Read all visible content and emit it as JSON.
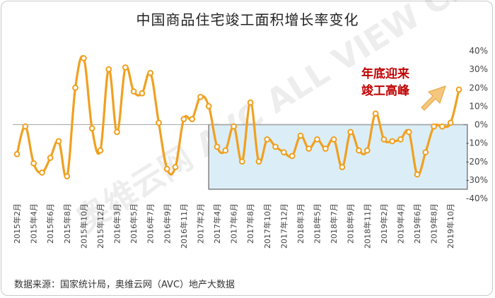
{
  "chart_data": {
    "type": "line",
    "title": "中国商品住宅竣工面积增长率变化",
    "source": "数据来源：国家统计局，奥维云网（AVC）地产大数据",
    "watermark": "奥维云网 AVC  ALL VIEW CLOUD",
    "annotation": {
      "line1": "年底迎来",
      "line2": "竣工高峰",
      "color": "#c00000",
      "arrow_color": "#f5c77e"
    },
    "y_axis": {
      "min": -40,
      "max": 40,
      "step": 10,
      "position": "right",
      "unit": "%"
    },
    "yticks": [
      "-40%",
      "-30%",
      "-20%",
      "-10%",
      "0%",
      "10%",
      "20%",
      "30%",
      "40%"
    ],
    "xticks": [
      "2015年2月",
      "2015年4月",
      "2015年6月",
      "2015年8月",
      "2015年10月",
      "2015年12月",
      "2016年3月",
      "2016年5月",
      "2016年7月",
      "2016年9月",
      "2016年11月",
      "2017年2月",
      "2017年4月",
      "2017年6月",
      "2017年8月",
      "2017年10月",
      "2017年12月",
      "2018年3月",
      "2018年5月",
      "2018年7月",
      "2018年9月",
      "2018年11月",
      "2019年2月",
      "2019年4月",
      "2019年6月",
      "2019年8月",
      "2019年10月"
    ],
    "series": [
      {
        "color": "#f0a020",
        "values": [
          -16,
          -1,
          -21,
          -26,
          -18,
          -9,
          -28,
          20,
          36,
          -2,
          -14,
          30,
          -4,
          31,
          18,
          17,
          28,
          1,
          -24,
          -23,
          3,
          3,
          15,
          10,
          -12,
          -14,
          -1,
          -20,
          12,
          -20,
          -8,
          -12,
          -15,
          -17,
          -6,
          -13,
          -8,
          -13,
          -8,
          -23,
          -4,
          -14,
          -14,
          6,
          -8,
          -9,
          -8,
          -4,
          -27,
          -15,
          -1,
          -1,
          1,
          19
        ]
      }
    ],
    "highlight_box": {
      "from_index": 23,
      "to_index": 54,
      "y_top": 0,
      "y_bottom": -35,
      "fill": "#dbeef8",
      "stroke": "#7f7f7f"
    },
    "grid": false,
    "legend": "none"
  }
}
